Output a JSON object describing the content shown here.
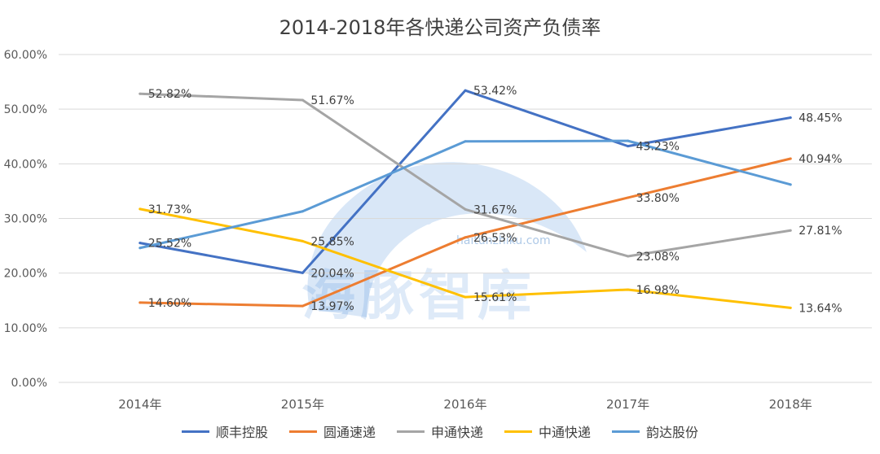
{
  "chart_data": {
    "type": "line",
    "title": "2014-2018年各快递公司资产负债率",
    "categories": [
      "2014年",
      "2015年",
      "2016年",
      "2017年",
      "2018年"
    ],
    "ylim": [
      0,
      60
    ],
    "yticks": [
      0,
      10,
      20,
      30,
      40,
      50,
      60
    ],
    "ytick_labels": [
      "0.00%",
      "10.00%",
      "20.00%",
      "30.00%",
      "40.00%",
      "50.00%",
      "60.00%"
    ],
    "grid": true,
    "legend_position": "bottom",
    "series": [
      {
        "name": "顺丰控股",
        "color": "#4472c4",
        "values": [
          25.52,
          20.04,
          53.42,
          43.23,
          48.45
        ],
        "labels": [
          "25.52%",
          "20.04%",
          "53.42%",
          "43.23%",
          "48.45%"
        ]
      },
      {
        "name": "圆通速递",
        "color": "#ed7d31",
        "values": [
          14.6,
          13.97,
          26.53,
          33.8,
          40.94
        ],
        "labels": [
          "14.60%",
          "13.97%",
          "26.53%",
          "33.80%",
          "40.94%"
        ]
      },
      {
        "name": "申通快递",
        "color": "#a5a5a5",
        "values": [
          52.82,
          51.67,
          31.67,
          23.08,
          27.81
        ],
        "labels": [
          "52.82%",
          "51.67%",
          "31.67%",
          "23.08%",
          "27.81%"
        ]
      },
      {
        "name": "中通快递",
        "color": "#ffc000",
        "values": [
          31.73,
          25.85,
          15.61,
          16.98,
          13.64
        ],
        "labels": [
          "31.73%",
          "25.85%",
          "15.61%",
          "16.98%",
          "13.64%"
        ]
      },
      {
        "name": "韵达股份",
        "color": "#5b9bd5",
        "values": [
          24.6,
          31.3,
          44.1,
          44.2,
          36.2
        ],
        "labels": []
      }
    ]
  },
  "watermark": {
    "text": "海豚智库",
    "url": "haitunzhiku.com"
  }
}
